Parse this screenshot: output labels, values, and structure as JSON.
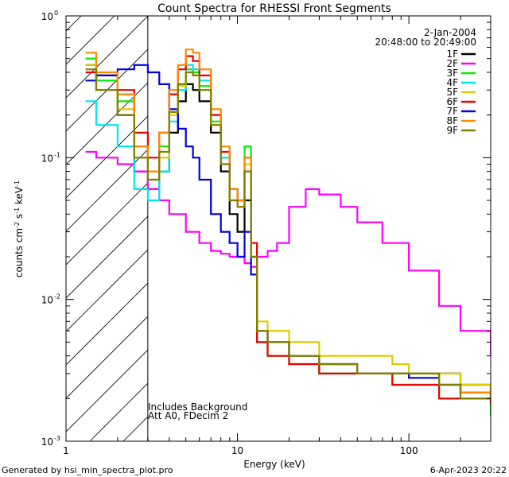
{
  "chart_data": {
    "type": "line",
    "title": "Count Spectra for RHESSI Front Segments",
    "xlabel": "Energy (keV)",
    "ylabel": "counts cm^-2 s^-1 keV^-1",
    "xscale": "log",
    "yscale": "log",
    "xlim": [
      1,
      300
    ],
    "ylim": [
      0.001,
      1
    ],
    "attenuator_boundary_keV": 3,
    "x_tick_labels": [
      {
        "value": 1,
        "label": "1"
      },
      {
        "value": 10,
        "label": "10"
      },
      {
        "value": 100,
        "label": "100"
      }
    ],
    "y_tick_labels": [
      {
        "value": 1,
        "base": "10",
        "exp": "0"
      },
      {
        "value": 0.1,
        "base": "10",
        "exp": "-1"
      },
      {
        "value": 0.01,
        "base": "10",
        "exp": "-2"
      },
      {
        "value": 0.001,
        "base": "10",
        "exp": "-3"
      }
    ],
    "date": "2-Jan-2004",
    "time_range": "20:48:00 to 20:49:00",
    "annotations": [
      "Includes Background",
      "Att A0, FDecim 2"
    ],
    "footer_left": "Generated by hsi_min_spectra_plot.pro",
    "footer_right": "6-Apr-2023 20:22",
    "series": [
      {
        "name": "1F",
        "color": "#000000",
        "x": [
          1.3,
          1.5,
          2,
          2.5,
          3,
          3.5,
          4,
          4.5,
          5,
          5.5,
          6,
          7,
          8,
          9,
          10,
          11,
          12,
          13,
          15,
          20,
          30,
          50,
          80,
          100,
          150,
          200,
          300
        ],
        "y": [
          0.45,
          0.3,
          0.2,
          0.08,
          0.06,
          0.08,
          0.15,
          0.25,
          0.33,
          0.3,
          0.25,
          0.15,
          0.08,
          0.04,
          0.03,
          0.05,
          0.02,
          0.006,
          0.005,
          0.004,
          0.003,
          0.003,
          0.003,
          0.003,
          0.003,
          0.0025,
          0.002
        ]
      },
      {
        "name": "2F",
        "color": "#ff00ff",
        "x": [
          1.3,
          1.5,
          2,
          2.5,
          3,
          3.5,
          4,
          5,
          6,
          7,
          8,
          9,
          10,
          11,
          12,
          13,
          15,
          17,
          20,
          25,
          30,
          40,
          50,
          70,
          100,
          150,
          200,
          300
        ],
        "y": [
          0.11,
          0.1,
          0.09,
          0.08,
          0.06,
          0.05,
          0.04,
          0.03,
          0.025,
          0.022,
          0.021,
          0.02,
          0.02,
          0.018,
          0.017,
          0.02,
          0.022,
          0.025,
          0.045,
          0.06,
          0.055,
          0.045,
          0.035,
          0.025,
          0.016,
          0.009,
          0.006,
          0.004
        ]
      },
      {
        "name": "3F",
        "color": "#00ee00",
        "x": [
          1.3,
          1.5,
          2,
          2.5,
          3,
          3.5,
          4,
          4.5,
          5,
          5.5,
          6,
          7,
          8,
          9,
          10,
          11,
          12,
          13,
          15,
          20,
          30,
          50,
          80,
          100,
          150,
          200,
          300
        ],
        "y": [
          0.5,
          0.35,
          0.25,
          0.12,
          0.08,
          0.12,
          0.22,
          0.33,
          0.42,
          0.4,
          0.32,
          0.18,
          0.1,
          0.06,
          0.05,
          0.12,
          0.02,
          0.005,
          0.004,
          0.0035,
          0.003,
          0.003,
          0.0025,
          0.0025,
          0.002,
          0.002,
          0.0015
        ]
      },
      {
        "name": "4F",
        "color": "#00e5ee",
        "x": [
          1.3,
          1.5,
          2,
          2.5,
          3,
          3.5,
          4,
          4.5,
          5,
          5.5,
          6,
          7,
          8,
          9,
          10,
          11,
          12,
          13,
          15,
          20,
          30,
          50,
          80,
          100,
          150,
          200,
          300
        ],
        "y": [
          0.25,
          0.17,
          0.12,
          0.06,
          0.05,
          0.08,
          0.18,
          0.3,
          0.45,
          0.42,
          0.35,
          0.2,
          0.1,
          0.06,
          0.05,
          0.08,
          0.015,
          0.006,
          0.005,
          0.004,
          0.0035,
          0.003,
          0.003,
          0.003,
          0.0025,
          0.002,
          0.002
        ]
      },
      {
        "name": "5F",
        "color": "#ddcc00",
        "x": [
          1.3,
          1.5,
          2,
          2.5,
          3,
          3.5,
          4,
          4.5,
          5,
          5.5,
          6,
          7,
          8,
          9,
          10,
          11,
          12,
          13,
          15,
          20,
          30,
          50,
          80,
          100,
          150,
          200,
          300
        ],
        "y": [
          0.45,
          0.3,
          0.22,
          0.1,
          0.07,
          0.1,
          0.2,
          0.32,
          0.4,
          0.38,
          0.3,
          0.17,
          0.09,
          0.05,
          0.045,
          0.09,
          0.02,
          0.007,
          0.006,
          0.005,
          0.004,
          0.004,
          0.0035,
          0.003,
          0.003,
          0.0025,
          0.002
        ]
      },
      {
        "name": "6F",
        "color": "#ee0000",
        "x": [
          1.3,
          1.5,
          2,
          2.5,
          3,
          3.5,
          4,
          4.5,
          5,
          5.5,
          6,
          7,
          8,
          9,
          10,
          11,
          12,
          13,
          15,
          20,
          30,
          50,
          80,
          100,
          150,
          200,
          300
        ],
        "y": [
          0.4,
          0.38,
          0.3,
          0.15,
          0.1,
          0.15,
          0.28,
          0.42,
          0.52,
          0.48,
          0.38,
          0.2,
          0.11,
          0.06,
          0.05,
          0.1,
          0.025,
          0.005,
          0.004,
          0.0035,
          0.003,
          0.003,
          0.0025,
          0.0025,
          0.002,
          0.002,
          0.0018
        ]
      },
      {
        "name": "7F",
        "color": "#0000dd",
        "x": [
          1.3,
          1.5,
          2,
          2.5,
          3,
          3.5,
          4,
          4.5,
          5,
          5.5,
          6,
          7,
          8,
          9,
          10,
          11,
          12,
          13,
          15,
          20,
          30,
          50,
          80,
          100,
          150,
          200,
          300
        ],
        "y": [
          0.35,
          0.38,
          0.42,
          0.45,
          0.4,
          0.33,
          0.22,
          0.16,
          0.12,
          0.1,
          0.07,
          0.04,
          0.03,
          0.025,
          0.02,
          0.03,
          0.015,
          0.006,
          0.005,
          0.004,
          0.0035,
          0.003,
          0.003,
          0.0028,
          0.0025,
          0.0022,
          0.002
        ]
      },
      {
        "name": "8F",
        "color": "#ff8800",
        "x": [
          1.3,
          1.5,
          2,
          2.5,
          3,
          3.5,
          4,
          4.5,
          5,
          5.5,
          6,
          7,
          8,
          9,
          10,
          11,
          12,
          13,
          15,
          20,
          30,
          50,
          80,
          100,
          150,
          200,
          300
        ],
        "y": [
          0.55,
          0.4,
          0.28,
          0.12,
          0.08,
          0.15,
          0.3,
          0.45,
          0.58,
          0.55,
          0.42,
          0.22,
          0.12,
          0.06,
          0.05,
          0.1,
          0.02,
          0.006,
          0.005,
          0.004,
          0.0035,
          0.003,
          0.003,
          0.003,
          0.0025,
          0.0022,
          0.002
        ]
      },
      {
        "name": "9F",
        "color": "#808000",
        "x": [
          1.3,
          1.5,
          2,
          2.5,
          3,
          3.5,
          4,
          4.5,
          5,
          5.5,
          6,
          7,
          8,
          9,
          10,
          11,
          12,
          13,
          15,
          20,
          30,
          50,
          80,
          100,
          150,
          200,
          300
        ],
        "y": [
          0.42,
          0.3,
          0.2,
          0.1,
          0.07,
          0.11,
          0.21,
          0.33,
          0.4,
          0.38,
          0.3,
          0.17,
          0.09,
          0.05,
          0.045,
          0.08,
          0.02,
          0.006,
          0.005,
          0.004,
          0.0035,
          0.003,
          0.003,
          0.003,
          0.0025,
          0.002,
          0.002
        ]
      }
    ]
  }
}
